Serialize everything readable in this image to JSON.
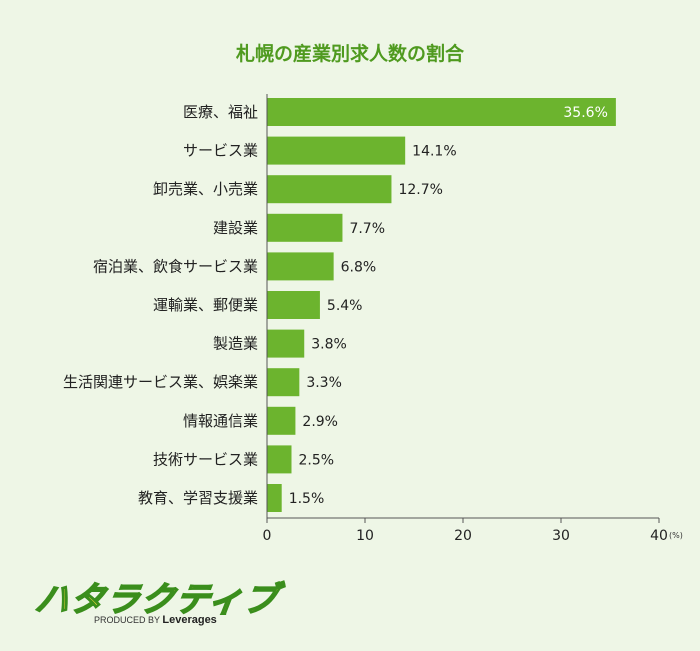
{
  "chart_data": {
    "type": "bar",
    "orientation": "horizontal",
    "title": "札幌の産業別求人数の割合",
    "categories": [
      "医療、福祉",
      "サービス業",
      "卸売業、小売業",
      "建設業",
      "宿泊業、飲食サービス業",
      "運輸業、郵便業",
      "製造業",
      "生活関連サービス業、娯楽業",
      "情報通信業",
      "技術サービス業",
      "教育、学習支援業"
    ],
    "values": [
      35.6,
      14.1,
      12.7,
      7.7,
      6.8,
      5.4,
      3.8,
      3.3,
      2.9,
      2.5,
      1.5
    ],
    "value_labels": [
      "35.6%",
      "14.1%",
      "12.7%",
      "7.7%",
      "6.8%",
      "5.4%",
      "3.8%",
      "3.3%",
      "2.9%",
      "2.5%",
      "1.5%"
    ],
    "xlim": [
      0,
      40
    ],
    "xticks": [
      0,
      10,
      20,
      30,
      40
    ],
    "xunit": "(%)",
    "grid": false,
    "legend": "none"
  },
  "colors": {
    "bar": "#6cb42e",
    "title": "#4f9a1f",
    "background": "#eef6e6",
    "axis": "#555555"
  },
  "logo": {
    "mark": "ハタラクティブ",
    "produced_by": "PRODUCED BY",
    "brand": "Leverages"
  }
}
